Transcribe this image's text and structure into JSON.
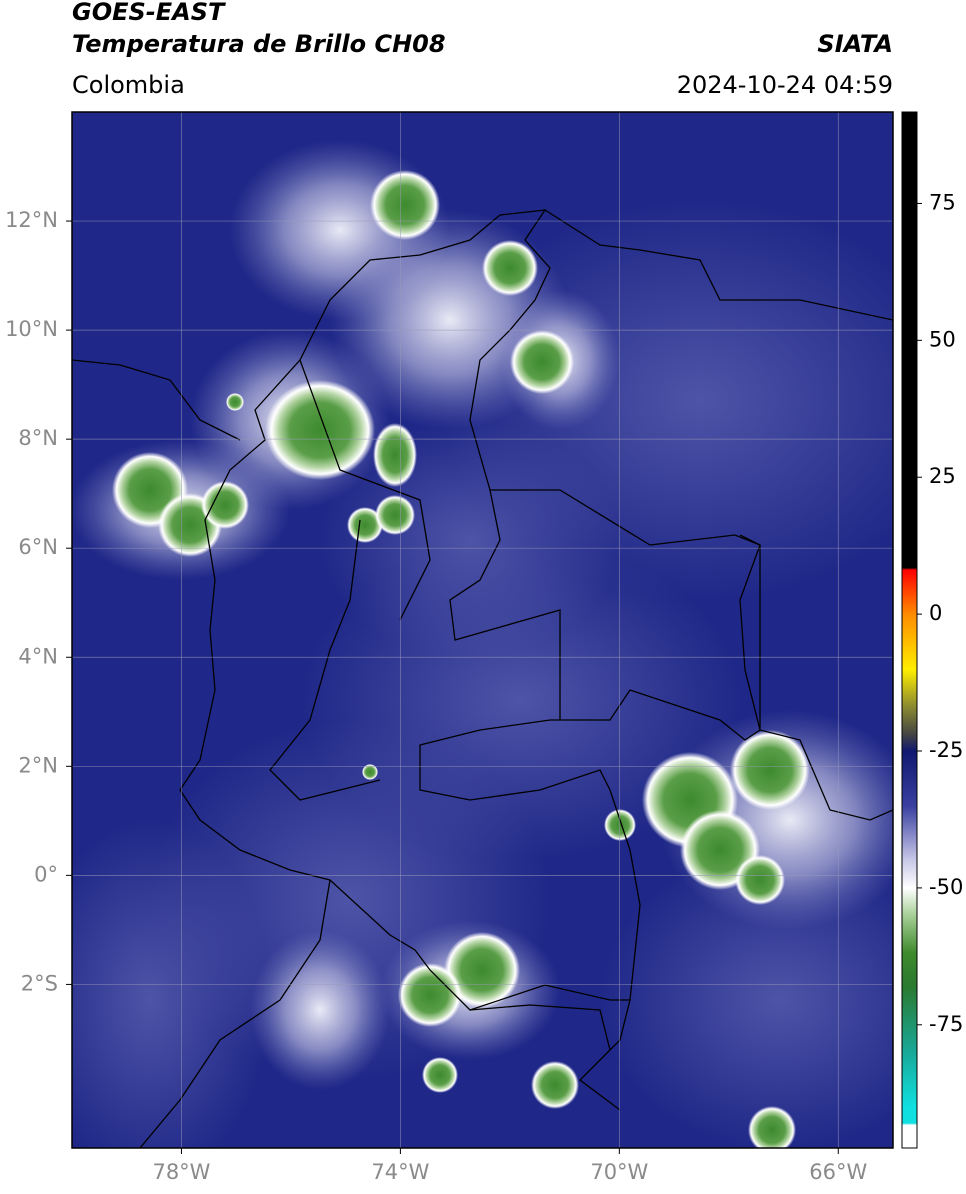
{
  "header": {
    "satellite": "GOES-EAST",
    "product": "Temperatura de Brillo CH08",
    "region": "Colombia",
    "source": "SIATA",
    "datetime": "2024-10-24 04:59"
  },
  "map": {
    "xlim": [
      -80,
      -65
    ],
    "ylim": [
      -5,
      14
    ],
    "xticks": [
      {
        "value": -78,
        "label": "78°W"
      },
      {
        "value": -74,
        "label": "74°W"
      },
      {
        "value": -70,
        "label": "70°W"
      },
      {
        "value": -66,
        "label": "66°W"
      }
    ],
    "yticks": [
      {
        "value": 12,
        "label": "12°N"
      },
      {
        "value": 10,
        "label": "10°N"
      },
      {
        "value": 8,
        "label": "8°N"
      },
      {
        "value": 6,
        "label": "6°N"
      },
      {
        "value": 4,
        "label": "4°N"
      },
      {
        "value": 2,
        "label": "2°N"
      },
      {
        "value": 0,
        "label": "0°"
      },
      {
        "value": -2,
        "label": "2°S"
      }
    ],
    "grid": true
  },
  "colorbar": {
    "lim": [
      -97.5,
      91.7
    ],
    "ticks": [
      75,
      50,
      25,
      0,
      -25,
      -50,
      -75
    ]
  }
}
